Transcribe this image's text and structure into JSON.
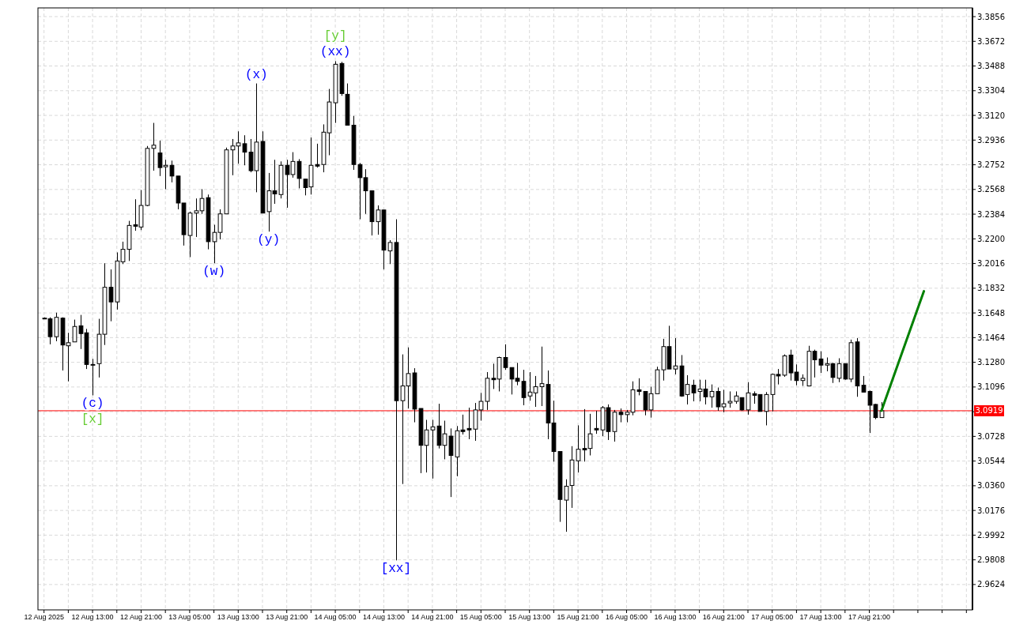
{
  "chart_data": {
    "type": "candlestick",
    "x": [
      "2025-08-12T05:00",
      "2025-08-12T06:00",
      "2025-08-12T07:00",
      "2025-08-12T08:00",
      "2025-08-12T09:00",
      "2025-08-12T10:00",
      "2025-08-12T11:00",
      "2025-08-12T12:00",
      "2025-08-12T13:00",
      "2025-08-12T14:00",
      "2025-08-12T15:00",
      "2025-08-12T16:00",
      "2025-08-12T17:00",
      "2025-08-12T18:00",
      "2025-08-12T19:00",
      "2025-08-12T20:00",
      "2025-08-12T21:00",
      "2025-08-12T22:00",
      "2025-08-12T23:00",
      "2025-08-13T00:00",
      "2025-08-13T01:00",
      "2025-08-13T02:00",
      "2025-08-13T03:00",
      "2025-08-13T04:00",
      "2025-08-13T05:00",
      "2025-08-13T06:00",
      "2025-08-13T07:00",
      "2025-08-13T08:00",
      "2025-08-13T09:00",
      "2025-08-13T10:00",
      "2025-08-13T11:00",
      "2025-08-13T12:00",
      "2025-08-13T13:00",
      "2025-08-13T14:00",
      "2025-08-13T15:00",
      "2025-08-13T16:00",
      "2025-08-13T17:00",
      "2025-08-13T18:00",
      "2025-08-13T19:00",
      "2025-08-13T20:00",
      "2025-08-13T21:00",
      "2025-08-13T22:00",
      "2025-08-13T23:00",
      "2025-08-14T00:00",
      "2025-08-14T01:00",
      "2025-08-14T02:00",
      "2025-08-14T03:00",
      "2025-08-14T04:00",
      "2025-08-14T05:00",
      "2025-08-14T06:00",
      "2025-08-14T07:00",
      "2025-08-14T08:00",
      "2025-08-14T09:00",
      "2025-08-14T10:00",
      "2025-08-14T11:00",
      "2025-08-14T12:00",
      "2025-08-14T13:00",
      "2025-08-14T14:00",
      "2025-08-14T15:00",
      "2025-08-14T16:00",
      "2025-08-14T17:00",
      "2025-08-14T18:00",
      "2025-08-14T19:00",
      "2025-08-14T20:00",
      "2025-08-14T21:00",
      "2025-08-14T22:00",
      "2025-08-14T23:00",
      "2025-08-15T00:00",
      "2025-08-15T01:00",
      "2025-08-15T02:00",
      "2025-08-15T03:00",
      "2025-08-15T04:00",
      "2025-08-15T05:00",
      "2025-08-15T06:00",
      "2025-08-15T07:00",
      "2025-08-15T08:00",
      "2025-08-15T09:00",
      "2025-08-15T10:00",
      "2025-08-15T11:00",
      "2025-08-15T12:00",
      "2025-08-15T13:00",
      "2025-08-15T14:00",
      "2025-08-15T15:00",
      "2025-08-15T16:00",
      "2025-08-15T17:00",
      "2025-08-15T18:00",
      "2025-08-15T19:00",
      "2025-08-15T20:00",
      "2025-08-15T21:00",
      "2025-08-15T22:00",
      "2025-08-15T23:00",
      "2025-08-16T00:00",
      "2025-08-16T01:00",
      "2025-08-16T02:00",
      "2025-08-16T03:00",
      "2025-08-16T04:00",
      "2025-08-16T05:00",
      "2025-08-16T06:00",
      "2025-08-16T07:00",
      "2025-08-16T08:00",
      "2025-08-16T09:00",
      "2025-08-16T10:00",
      "2025-08-16T11:00",
      "2025-08-16T12:00",
      "2025-08-16T13:00",
      "2025-08-16T14:00",
      "2025-08-16T15:00",
      "2025-08-16T16:00",
      "2025-08-16T17:00",
      "2025-08-16T18:00",
      "2025-08-16T19:00",
      "2025-08-16T20:00",
      "2025-08-16T21:00",
      "2025-08-16T22:00",
      "2025-08-16T23:00",
      "2025-08-17T00:00",
      "2025-08-17T01:00",
      "2025-08-17T02:00",
      "2025-08-17T03:00",
      "2025-08-17T04:00",
      "2025-08-17T05:00",
      "2025-08-17T06:00",
      "2025-08-17T07:00",
      "2025-08-17T08:00",
      "2025-08-17T09:00",
      "2025-08-17T10:00",
      "2025-08-17T11:00",
      "2025-08-17T12:00",
      "2025-08-17T13:00",
      "2025-08-17T14:00",
      "2025-08-17T15:00",
      "2025-08-17T16:00",
      "2025-08-17T17:00",
      "2025-08-17T18:00",
      "2025-08-17T19:00",
      "2025-08-17T20:00",
      "2025-08-17T21:00",
      "2025-08-17T22:00",
      "2025-08-17T23:00"
    ],
    "ohlc": [
      [
        3.1609,
        3.1615,
        3.1604,
        3.1609
      ],
      [
        3.1604,
        3.1615,
        3.1414,
        3.1471
      ],
      [
        3.1471,
        3.165,
        3.1437,
        3.1615
      ],
      [
        3.1609,
        3.1615,
        3.1219,
        3.1409
      ],
      [
        3.1403,
        3.15,
        3.1138,
        3.1426
      ],
      [
        3.1432,
        3.1598,
        3.1432,
        3.1547
      ],
      [
        3.1552,
        3.1633,
        3.1379,
        3.1494
      ],
      [
        3.15,
        3.1529,
        3.123,
        3.1264
      ],
      [
        3.1264,
        3.1305,
        3.1034,
        3.1264
      ],
      [
        3.127,
        3.1604,
        3.1167,
        3.1489
      ],
      [
        3.1489,
        3.2018,
        3.1409,
        3.1839
      ],
      [
        3.1839,
        3.1972,
        3.1586,
        3.173
      ],
      [
        3.173,
        3.2099,
        3.1673,
        3.2035
      ],
      [
        3.2029,
        3.2179,
        3.2012,
        3.2122
      ],
      [
        3.2122,
        3.2334,
        3.2035,
        3.23
      ],
      [
        3.2305,
        3.2495,
        3.226,
        3.2294
      ],
      [
        3.2288,
        3.2564,
        3.2265,
        3.2449
      ],
      [
        3.2449,
        3.2892,
        3.2443,
        3.2874
      ],
      [
        3.2874,
        3.3064,
        3.2708,
        3.2898
      ],
      [
        3.284,
        3.2932,
        3.2668,
        3.2731
      ],
      [
        3.2737,
        3.2789,
        3.257,
        3.2748
      ],
      [
        3.2748,
        3.2783,
        3.2621,
        3.2668
      ],
      [
        3.2668,
        3.2668,
        3.242,
        3.2467
      ],
      [
        3.2467,
        3.2467,
        3.215,
        3.2231
      ],
      [
        3.2225,
        3.2403,
        3.2064,
        3.2392
      ],
      [
        3.2392,
        3.2501,
        3.2214,
        3.2409
      ],
      [
        3.2409,
        3.257,
        3.2386,
        3.2501
      ],
      [
        3.2507,
        3.253,
        3.2122,
        3.2179
      ],
      [
        3.2179,
        3.2305,
        3.2018,
        3.2248
      ],
      [
        3.2248,
        3.242,
        3.2196,
        3.2386
      ],
      [
        3.2386,
        3.288,
        3.2386,
        3.2863
      ],
      [
        3.2863,
        3.2944,
        3.2674,
        3.2892
      ],
      [
        3.2892,
        3.3001,
        3.276,
        3.2915
      ],
      [
        3.2909,
        3.2972,
        3.2748,
        3.2846
      ],
      [
        3.2846,
        3.2944,
        3.2696,
        3.2708
      ],
      [
        3.2708,
        3.3358,
        3.2547,
        3.2921
      ],
      [
        3.2926,
        3.3001,
        3.2392,
        3.2392
      ],
      [
        3.2403,
        3.2691,
        3.2254,
        3.2558
      ],
      [
        3.2558,
        3.2789,
        3.2461,
        3.2535
      ],
      [
        3.253,
        3.2777,
        3.2501,
        3.2748
      ],
      [
        3.2748,
        3.2789,
        3.2432,
        3.2679
      ],
      [
        3.2679,
        3.2846,
        3.2656,
        3.2777
      ],
      [
        3.2777,
        3.2794,
        3.2576,
        3.265
      ],
      [
        3.2645,
        3.2645,
        3.2524,
        3.2582
      ],
      [
        3.2587,
        3.2955,
        3.253,
        3.2748
      ],
      [
        3.2754,
        3.2909,
        3.2731,
        3.2742
      ],
      [
        3.2754,
        3.3053,
        3.2696,
        3.2995
      ],
      [
        3.299,
        3.3317,
        3.2823,
        3.322
      ],
      [
        3.3214,
        3.3524,
        3.3064,
        3.3501
      ],
      [
        3.3507,
        3.3519,
        3.3266,
        3.3283
      ],
      [
        3.3277,
        3.3358,
        3.3047,
        3.3047
      ],
      [
        3.3047,
        3.3116,
        3.2714,
        3.2754
      ],
      [
        3.2754,
        3.2765,
        3.2346,
        3.2656
      ],
      [
        3.2656,
        3.2719,
        3.2386,
        3.2558
      ],
      [
        3.2558,
        3.2558,
        3.2225,
        3.2328
      ],
      [
        3.2328,
        3.2449,
        3.2231,
        3.2415
      ],
      [
        3.2415,
        3.2415,
        3.1972,
        3.2116
      ],
      [
        3.211,
        3.219,
        3.2012,
        3.2173
      ],
      [
        3.2173,
        3.2346,
        2.9804,
        3.0994
      ],
      [
        3.0994,
        3.1339,
        3.0373,
        3.1104
      ],
      [
        3.1104,
        3.1391,
        3.0936,
        3.1196
      ],
      [
        3.1201,
        3.1236,
        3.0833,
        3.0931
      ],
      [
        3.0936,
        3.0936,
        3.0454,
        3.0661
      ],
      [
        3.0661,
        3.0851,
        3.0459,
        3.0776
      ],
      [
        3.0776,
        3.0851,
        3.0414,
        3.0799
      ],
      [
        3.0805,
        3.0971,
        3.0638,
        3.0661
      ],
      [
        3.0661,
        3.0845,
        3.0557,
        3.0747
      ],
      [
        3.073,
        3.0787,
        3.0276,
        3.0586
      ],
      [
        3.0575,
        3.0805,
        3.0431,
        3.077
      ],
      [
        3.0776,
        3.089,
        3.0742,
        3.0764
      ],
      [
        3.0787,
        3.0942,
        3.0707,
        3.0776
      ],
      [
        3.0782,
        3.0977,
        3.0695,
        3.0925
      ],
      [
        3.0925,
        3.1052,
        3.0845,
        3.0989
      ],
      [
        3.0989,
        3.1207,
        3.0925,
        3.1161
      ],
      [
        3.1161,
        3.127,
        3.1081,
        3.115
      ],
      [
        3.1155,
        3.1322,
        3.1063,
        3.1316
      ],
      [
        3.1316,
        3.1414,
        3.1224,
        3.1241
      ],
      [
        3.1241,
        3.1241,
        3.104,
        3.1155
      ],
      [
        3.1161,
        3.1276,
        3.1109,
        3.1138
      ],
      [
        3.1138,
        3.1224,
        3.096,
        3.1017
      ],
      [
        3.1029,
        3.1207,
        3.0994,
        3.1058
      ],
      [
        3.1052,
        3.1178,
        3.0948,
        3.1098
      ],
      [
        3.1098,
        3.1397,
        3.0954,
        3.1121
      ],
      [
        3.1115,
        3.1219,
        3.0707,
        3.0828
      ],
      [
        3.0828,
        3.0994,
        3.054,
        3.0615
      ],
      [
        3.0615,
        3.0615,
        3.0091,
        3.0258
      ],
      [
        3.0253,
        3.0408,
        3.0017,
        3.0356
      ],
      [
        3.0362,
        3.0655,
        3.0195,
        3.0552
      ],
      [
        3.0546,
        3.081,
        3.0459,
        3.0632
      ],
      [
        3.0638,
        3.0931,
        3.054,
        3.0627
      ],
      [
        3.0638,
        3.0896,
        3.0586,
        3.0747
      ],
      [
        3.0787,
        3.0919,
        3.0747,
        3.0776
      ],
      [
        3.0776,
        3.0954,
        3.073,
        3.0942
      ],
      [
        3.0942,
        3.0966,
        3.0701,
        3.0764
      ],
      [
        3.0764,
        3.0925,
        3.0689,
        3.0908
      ],
      [
        3.0908,
        3.0936,
        3.0833,
        3.089
      ],
      [
        3.089,
        3.0925,
        3.0833,
        3.0908
      ],
      [
        3.0908,
        3.1138,
        3.0885,
        3.1075
      ],
      [
        3.1075,
        3.1161,
        3.1034,
        3.1063
      ],
      [
        3.1063,
        3.1063,
        3.0885,
        3.0925
      ],
      [
        3.0925,
        3.1098,
        3.0868,
        3.1046
      ],
      [
        3.1046,
        3.1247,
        3.1046,
        3.1224
      ],
      [
        3.1224,
        3.1455,
        3.1144,
        3.1397
      ],
      [
        3.1397,
        3.1552,
        3.123,
        3.123
      ],
      [
        3.123,
        3.146,
        3.119,
        3.1253
      ],
      [
        3.1253,
        3.1334,
        3.1023,
        3.1029
      ],
      [
        3.104,
        3.1184,
        3.0966,
        3.1115
      ],
      [
        3.1109,
        3.115,
        3.0989,
        3.1052
      ],
      [
        3.1063,
        3.115,
        3.0989,
        3.1081
      ],
      [
        3.1081,
        3.115,
        3.0966,
        3.1023
      ],
      [
        3.1023,
        3.1115,
        3.0942,
        3.1063
      ],
      [
        3.1063,
        3.1092,
        3.0919,
        3.0948
      ],
      [
        3.0948,
        3.1075,
        3.0908,
        3.0971
      ],
      [
        3.0977,
        3.1063,
        3.0942,
        3.0989
      ],
      [
        3.0989,
        3.1063,
        3.0971,
        3.1029
      ],
      [
        3.1017,
        3.1017,
        3.0919,
        3.0925
      ],
      [
        3.0925,
        3.1132,
        3.089,
        3.1052
      ],
      [
        3.1046,
        3.1063,
        3.0971,
        3.1034
      ],
      [
        3.104,
        3.104,
        3.0914,
        3.0914
      ],
      [
        3.0914,
        3.1058,
        3.081,
        3.104
      ],
      [
        3.104,
        3.1196,
        3.0914,
        3.119
      ],
      [
        3.119,
        3.123,
        3.1115,
        3.1178
      ],
      [
        3.1184,
        3.1339,
        3.1172,
        3.1328
      ],
      [
        3.1334,
        3.1374,
        3.1144,
        3.1201
      ],
      [
        3.1207,
        3.1264,
        3.1109,
        3.1144
      ],
      [
        3.1144,
        3.119,
        3.1104,
        3.1161
      ],
      [
        3.1104,
        3.1403,
        3.1104,
        3.1362
      ],
      [
        3.1362,
        3.1374,
        3.1167,
        3.1299
      ],
      [
        3.1305,
        3.1362,
        3.1201,
        3.1259
      ],
      [
        3.1259,
        3.1316,
        3.1213,
        3.127
      ],
      [
        3.127,
        3.1276,
        3.1126,
        3.1167
      ],
      [
        3.1161,
        3.131,
        3.1132,
        3.127
      ],
      [
        3.127,
        3.127,
        3.115,
        3.1155
      ],
      [
        3.1155,
        3.1449,
        3.1132,
        3.1426
      ],
      [
        3.1432,
        3.146,
        3.1023,
        3.1104
      ],
      [
        3.1109,
        3.1178,
        3.1058,
        3.1058
      ],
      [
        3.1063,
        3.1069,
        3.0753,
        3.096
      ],
      [
        3.0966,
        3.0971,
        3.0856,
        3.0868
      ],
      [
        3.0868,
        3.0983,
        3.0868,
        3.0919
      ]
    ],
    "series": [
      {
        "type": "line",
        "color": "#008000",
        "x": [
          "2025-08-17T23:00",
          "2025-08-18T06:00"
        ],
        "values": [
          3.0919,
          3.181
        ]
      }
    ],
    "xlim": [
      "2025-08-12T04:00",
      "2025-08-18T14:00"
    ],
    "xticks": [
      {
        "value": "2025-08-12T05:00",
        "label": "12 Aug 2025"
      },
      {
        "value": "2025-08-12T09:00",
        "label": null
      },
      {
        "value": "2025-08-12T13:00",
        "label": "12 Aug 13:00"
      },
      {
        "value": "2025-08-12T17:00",
        "label": null
      },
      {
        "value": "2025-08-12T21:00",
        "label": "12 Aug 21:00"
      },
      {
        "value": "2025-08-13T01:00",
        "label": null
      },
      {
        "value": "2025-08-13T05:00",
        "label": "13 Aug 05:00"
      },
      {
        "value": "2025-08-13T09:00",
        "label": null
      },
      {
        "value": "2025-08-13T13:00",
        "label": "13 Aug 13:00"
      },
      {
        "value": "2025-08-13T17:00",
        "label": null
      },
      {
        "value": "2025-08-13T21:00",
        "label": "13 Aug 21:00"
      },
      {
        "value": "2025-08-14T01:00",
        "label": null
      },
      {
        "value": "2025-08-14T05:00",
        "label": "14 Aug 05:00"
      },
      {
        "value": "2025-08-14T09:00",
        "label": null
      },
      {
        "value": "2025-08-14T13:00",
        "label": "14 Aug 13:00"
      },
      {
        "value": "2025-08-14T17:00",
        "label": null
      },
      {
        "value": "2025-08-14T21:00",
        "label": "14 Aug 21:00"
      },
      {
        "value": "2025-08-15T01:00",
        "label": null
      },
      {
        "value": "2025-08-15T05:00",
        "label": "15 Aug 05:00"
      },
      {
        "value": "2025-08-15T09:00",
        "label": null
      },
      {
        "value": "2025-08-15T13:00",
        "label": "15 Aug 13:00"
      },
      {
        "value": "2025-08-15T17:00",
        "label": null
      },
      {
        "value": "2025-08-15T21:00",
        "label": "15 Aug 21:00"
      },
      {
        "value": "2025-08-16T01:00",
        "label": null
      },
      {
        "value": "2025-08-16T05:00",
        "label": "16 Aug 05:00"
      },
      {
        "value": "2025-08-16T09:00",
        "label": null
      },
      {
        "value": "2025-08-16T13:00",
        "label": "16 Aug 13:00"
      },
      {
        "value": "2025-08-16T17:00",
        "label": null
      },
      {
        "value": "2025-08-16T21:00",
        "label": "16 Aug 21:00"
      },
      {
        "value": "2025-08-17T01:00",
        "label": null
      },
      {
        "value": "2025-08-17T05:00",
        "label": "17 Aug 05:00"
      },
      {
        "value": "2025-08-17T09:00",
        "label": null
      },
      {
        "value": "2025-08-17T13:00",
        "label": "17 Aug 13:00"
      },
      {
        "value": "2025-08-17T17:00",
        "label": null
      },
      {
        "value": "2025-08-17T21:00",
        "label": "17 Aug 21:00"
      },
      {
        "value": "2025-08-18T01:00",
        "label": null
      },
      {
        "value": "2025-08-18T05:00",
        "label": null
      },
      {
        "value": "2025-08-18T09:00",
        "label": null
      },
      {
        "value": "2025-08-18T13:00",
        "label": null
      }
    ],
    "ylim": [
      2.9435,
      3.3921
    ],
    "yticks": [
      2.9624,
      2.9808,
      2.9992,
      3.0176,
      {
        "value": 3.036,
        "label": "3.0360"
      },
      3.0544,
      3.0728,
      {
        "value": 3.0912,
        "label": null
      },
      3.1096,
      {
        "value": 3.128,
        "label": "3.1280"
      },
      3.1464,
      3.1648,
      3.1832,
      3.2016,
      {
        "value": 3.22,
        "label": "3.2200"
      },
      3.2384,
      3.2568,
      3.2752,
      3.2936,
      {
        "value": 3.312,
        "label": "3.3120"
      },
      3.3304,
      3.3488,
      3.3672,
      3.3856
    ],
    "grid": true,
    "ref_lines": [
      {
        "axis": "y",
        "value": 3.0919,
        "label": "3.0919",
        "color": "#ff0000"
      }
    ],
    "annotations": [
      {
        "text": "(c)",
        "x": "2025-08-12T13:00",
        "y": 3.1034
      },
      {
        "text": "[x]",
        "x": "2025-08-12T13:00",
        "y": 3.1034
      },
      {
        "text": "(w)",
        "x": "2025-08-13T09:00",
        "y": 3.2018
      },
      {
        "text": "(x)",
        "x": "2025-08-13T16:00",
        "y": 3.3358
      },
      {
        "text": "(y)",
        "x": "2025-08-13T18:00",
        "y": 3.2254
      },
      {
        "text": "(xx)",
        "x": "2025-08-14T05:00",
        "y": 3.3524
      },
      {
        "text": "[y]",
        "x": "2025-08-14T05:00",
        "y": 3.3524
      },
      {
        "text": "[xx]",
        "x": "2025-08-14T15:00",
        "y": 2.9804
      }
    ]
  }
}
